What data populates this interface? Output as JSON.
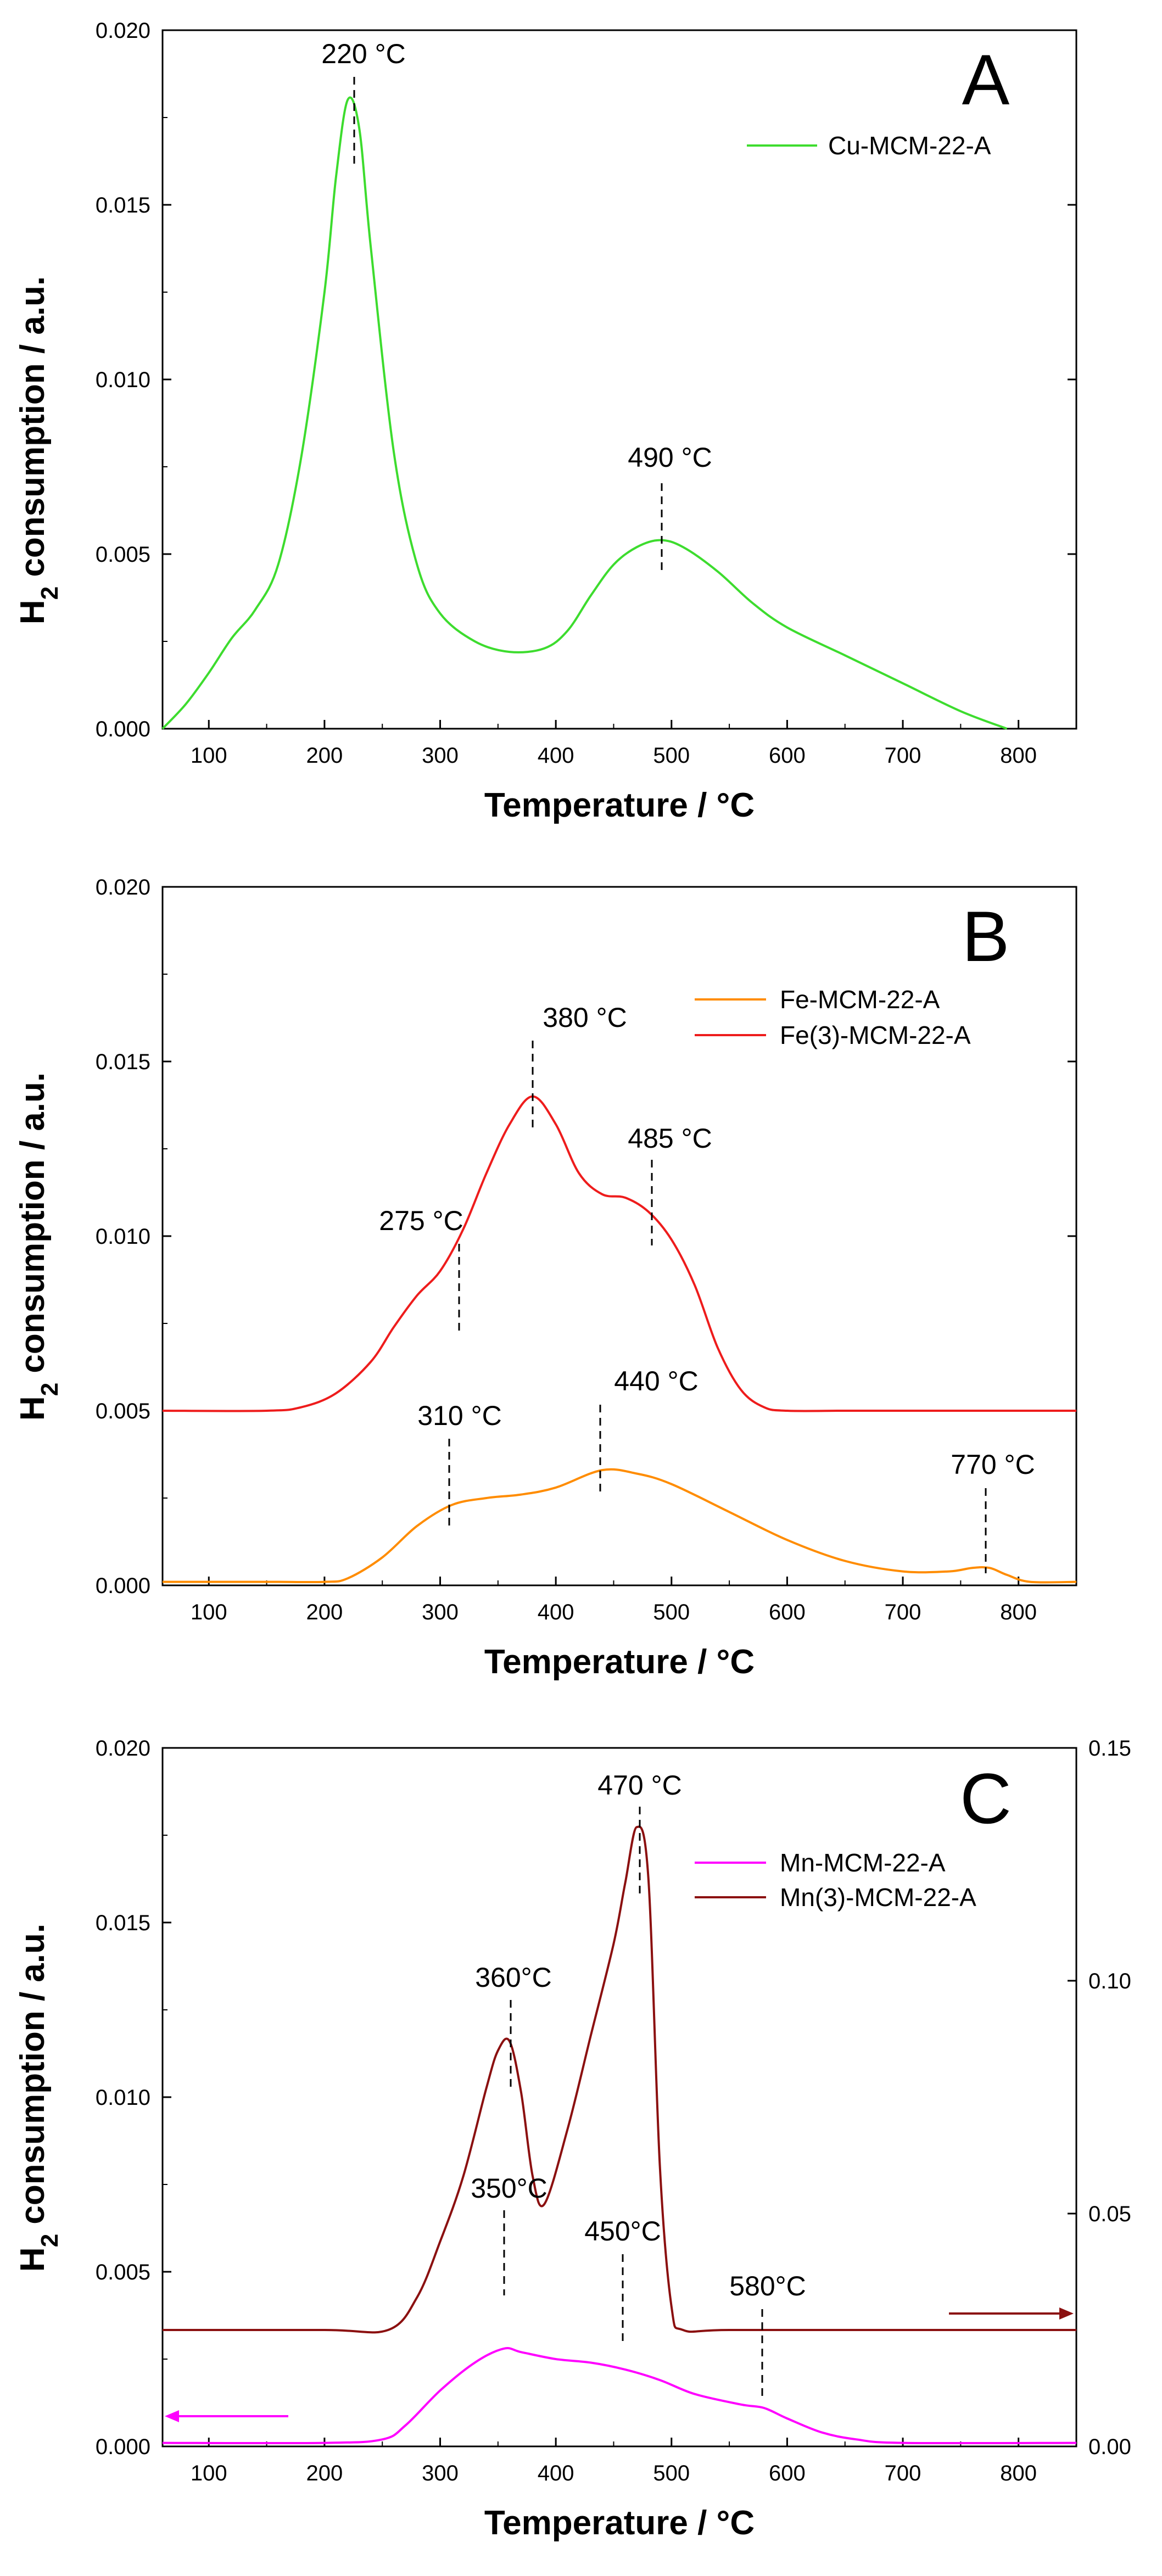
{
  "chart_data": [
    {
      "type": "line",
      "panel_label": "A",
      "xlabel": "Temperature / °C",
      "ylabel": "H2 consumption / a.u.",
      "xlim": [
        60,
        850
      ],
      "ylim": [
        0,
        0.02
      ],
      "x_ticks": [
        100,
        200,
        300,
        400,
        500,
        600,
        700,
        800
      ],
      "x_tick_labels": [
        "100",
        "200",
        "300",
        "400",
        "500",
        "600",
        "700",
        "800"
      ],
      "y_ticks": [
        0,
        0.005,
        0.01,
        0.015,
        0.02
      ],
      "y_tick_labels": [
        "0.000",
        "0.005",
        "0.010",
        "0.015",
        "0.020"
      ],
      "legend_position": "top-right",
      "series": [
        {
          "name": "Cu-MCM-22-A",
          "color": "#3ddc2e",
          "x": [
            60,
            80,
            100,
            120,
            140,
            160,
            180,
            200,
            210,
            220,
            230,
            240,
            260,
            280,
            300,
            330,
            360,
            390,
            410,
            430,
            450,
            470,
            490,
            510,
            540,
            570,
            600,
            650,
            700,
            750,
            790
          ],
          "y": [
            0.0,
            0.0007,
            0.0016,
            0.0026,
            0.0034,
            0.0047,
            0.0078,
            0.0125,
            0.0158,
            0.018,
            0.0172,
            0.0138,
            0.0079,
            0.0047,
            0.0033,
            0.0025,
            0.0022,
            0.0023,
            0.0028,
            0.0038,
            0.0047,
            0.0052,
            0.0054,
            0.0052,
            0.0045,
            0.0036,
            0.0029,
            0.0021,
            0.0013,
            0.0005,
            0.0
          ]
        }
      ],
      "annotations": [
        {
          "text": "220 °C",
          "x": 220,
          "y": 0.018
        },
        {
          "text": "490 °C",
          "x": 490,
          "y": 0.0054
        }
      ]
    },
    {
      "type": "line",
      "panel_label": "B",
      "xlabel": "Temperature / °C",
      "ylabel": "H2 consumption / a.u.",
      "xlim": [
        60,
        850
      ],
      "ylim": [
        0,
        0.02
      ],
      "x_ticks": [
        100,
        200,
        300,
        400,
        500,
        600,
        700,
        800
      ],
      "x_tick_labels": [
        "100",
        "200",
        "300",
        "400",
        "500",
        "600",
        "700",
        "800"
      ],
      "y_ticks": [
        0,
        0.005,
        0.01,
        0.015,
        0.02
      ],
      "y_tick_labels": [
        "0.000",
        "0.005",
        "0.010",
        "0.015",
        "0.020"
      ],
      "legend_position": "top-right",
      "series": [
        {
          "name": "Fe-MCM-22-A",
          "color": "#ff8c00",
          "x": [
            60,
            150,
            200,
            220,
            250,
            280,
            310,
            340,
            370,
            400,
            440,
            470,
            500,
            550,
            600,
            650,
            700,
            740,
            760,
            775,
            790,
            810,
            850
          ],
          "y": [
            0.0001,
            0.0001,
            0.0001,
            0.0002,
            0.0008,
            0.0017,
            0.0023,
            0.0025,
            0.0026,
            0.0028,
            0.0033,
            0.0032,
            0.0029,
            0.0021,
            0.0013,
            0.0007,
            0.0004,
            0.0004,
            0.0005,
            0.0005,
            0.0003,
            0.0001,
            0.0001
          ]
        },
        {
          "name": "Fe(3)-MCM-22-A",
          "color": "#ee1c1c",
          "x": [
            60,
            150,
            180,
            210,
            240,
            260,
            280,
            300,
            320,
            340,
            360,
            380,
            400,
            420,
            440,
            460,
            480,
            500,
            520,
            540,
            560,
            580,
            600,
            650,
            700,
            850
          ],
          "y": [
            0.005,
            0.005,
            0.0051,
            0.0055,
            0.0064,
            0.0074,
            0.0083,
            0.009,
            0.0102,
            0.0118,
            0.0132,
            0.014,
            0.0132,
            0.0118,
            0.0112,
            0.0111,
            0.0107,
            0.0099,
            0.0086,
            0.0068,
            0.0056,
            0.0051,
            0.005,
            0.005,
            0.005,
            0.005
          ]
        }
      ],
      "annotations": [
        {
          "text": "380 °C",
          "x": 380,
          "y": 0.014
        },
        {
          "text": "485 °C",
          "x": 485,
          "y": 0.0107
        },
        {
          "text": "275 °C",
          "x": 275,
          "y": 0.0081
        },
        {
          "text": "440 °C",
          "x": 440,
          "y": 0.0033
        },
        {
          "text": "310 °C",
          "x": 310,
          "y": 0.0023
        },
        {
          "text": "770 °C",
          "x": 775,
          "y": 0.0005
        }
      ]
    },
    {
      "type": "line",
      "panel_label": "C",
      "xlabel": "Temperature / °C",
      "ylabel": "H2 consumption / a.u.",
      "xlim": [
        60,
        850
      ],
      "ylim": [
        0,
        0.02
      ],
      "y2lim": [
        0,
        0.15
      ],
      "x_ticks": [
        100,
        200,
        300,
        400,
        500,
        600,
        700,
        800
      ],
      "x_tick_labels": [
        "100",
        "200",
        "300",
        "400",
        "500",
        "600",
        "700",
        "800"
      ],
      "y_ticks": [
        0,
        0.005,
        0.01,
        0.015,
        0.02
      ],
      "y_tick_labels": [
        "0.000",
        "0.005",
        "0.010",
        "0.015",
        "0.020"
      ],
      "y2_ticks": [
        0,
        0.05,
        0.1,
        0.15
      ],
      "y2_tick_labels": [
        "0.00",
        "0.05",
        "0.10",
        "0.15"
      ],
      "legend_position": "top-right",
      "series": [
        {
          "name": "Mn-MCM-22-A",
          "color": "#ff00ff",
          "axis": "left",
          "x": [
            60,
            200,
            250,
            270,
            300,
            330,
            355,
            370,
            400,
            430,
            460,
            490,
            520,
            560,
            580,
            600,
            630,
            660,
            700,
            850
          ],
          "y": [
            0.0001,
            0.0001,
            0.0002,
            0.0006,
            0.0016,
            0.0024,
            0.0028,
            0.0027,
            0.0025,
            0.0024,
            0.0022,
            0.0019,
            0.0015,
            0.0012,
            0.0011,
            0.0008,
            0.0004,
            0.0002,
            0.0001,
            0.0001
          ]
        },
        {
          "name": "Mn(3)-MCM-22-A",
          "color": "#8b1010",
          "axis": "right",
          "x": [
            60,
            200,
            255,
            280,
            300,
            320,
            340,
            350,
            360,
            370,
            380,
            390,
            410,
            430,
            450,
            460,
            470,
            480,
            490,
            500,
            510,
            550,
            700,
            850
          ],
          "y": [
            0.025,
            0.025,
            0.025,
            0.032,
            0.044,
            0.058,
            0.077,
            0.085,
            0.087,
            0.076,
            0.058,
            0.052,
            0.068,
            0.088,
            0.108,
            0.121,
            0.133,
            0.122,
            0.06,
            0.03,
            0.025,
            0.025,
            0.025,
            0.025
          ]
        }
      ],
      "annotations": [
        {
          "text": "470 °C",
          "x": 470,
          "y": 0.0177
        },
        {
          "text": "360°C",
          "x": 360,
          "y": 0.0116
        },
        {
          "text": "350°C",
          "x": 355,
          "y": 0.0028
        },
        {
          "text": "450°C",
          "x": 455,
          "y": 0.0022
        },
        {
          "text": "580°C",
          "x": 578,
          "y": 0.0011
        }
      ],
      "axis_arrows": [
        {
          "direction": "left",
          "color": "#ff00ff"
        },
        {
          "direction": "right",
          "color": "#8b1010"
        }
      ]
    }
  ]
}
